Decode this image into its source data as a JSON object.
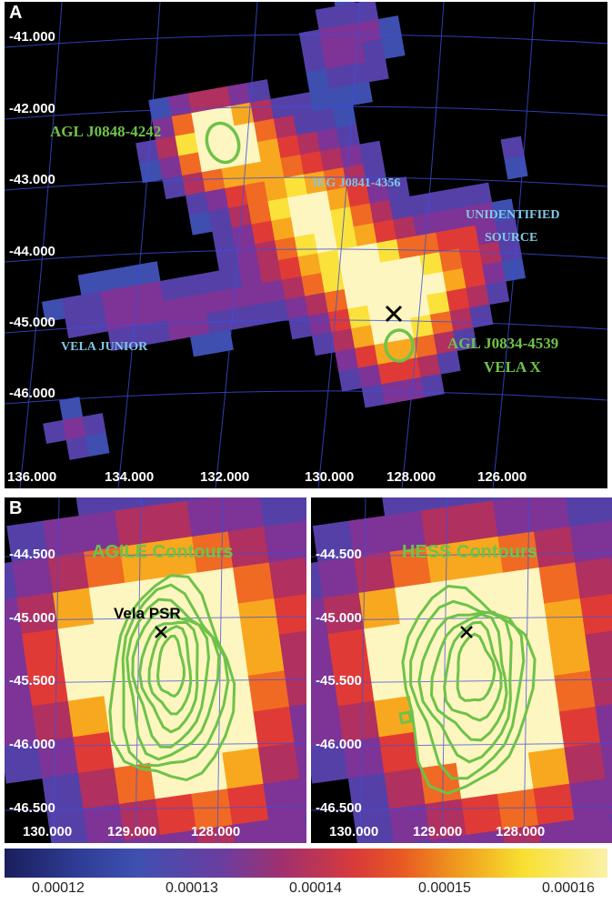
{
  "panel_a": {
    "letter": "A",
    "y_ticks": [
      "-41.000",
      "-42.000",
      "-43.000",
      "-44.000",
      "-45.000",
      "-46.000"
    ],
    "x_ticks": [
      "136.000",
      "134.000",
      "132.000",
      "130.000",
      "128.000",
      "126.000"
    ],
    "sources": {
      "agl_j0848": "AGL J0848-4242",
      "three_eg": "3EG J0841-4356",
      "unidentified_1": "UNIDENTIFIED",
      "unidentified_2": "SOURCE",
      "vela_junior": "VELA JUNIOR",
      "agl_j0834": "AGL J0834-4539",
      "vela_x": "VELA X"
    }
  },
  "panel_b": {
    "letter": "B",
    "left": {
      "title": "AGILE Contours",
      "psr_label": "Vela PSR",
      "y_ticks": [
        "-44.500",
        "-45.000",
        "-45.500",
        "-46.000",
        "-46.500"
      ],
      "x_ticks": [
        "130.000",
        "129.000",
        "128.000"
      ]
    },
    "right": {
      "title": "HESS Contours",
      "y_ticks": [
        "-44.500",
        "-45.000",
        "-45.500",
        "-46.000",
        "-46.500"
      ],
      "x_ticks": [
        "130.000",
        "129.000",
        "128.000"
      ]
    }
  },
  "colorbar": {
    "labels": [
      "0.00012",
      "0.00013",
      "0.00014",
      "0.00015",
      "0.00016"
    ]
  }
}
